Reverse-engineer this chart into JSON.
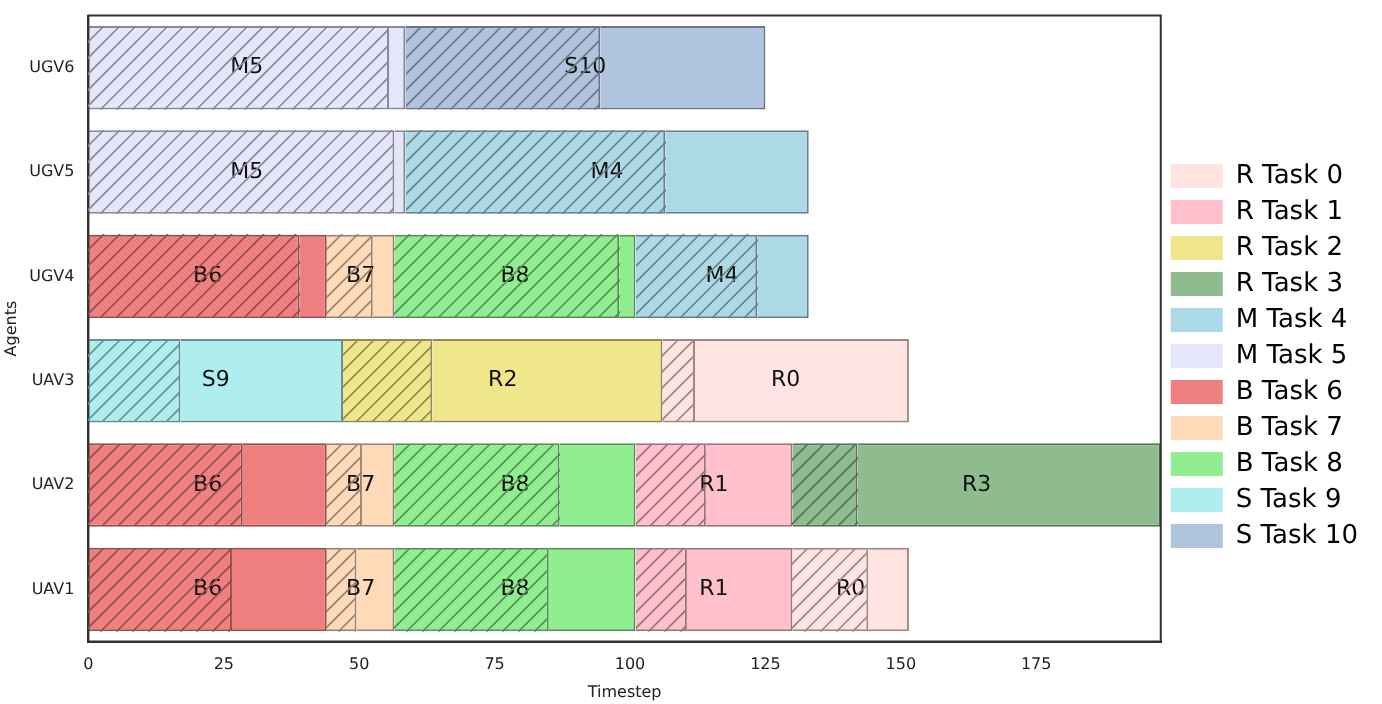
{
  "chart_data": {
    "type": "bar",
    "orientation": "horizontal",
    "xlabel": "Timestep",
    "ylabel": "Agents",
    "categories": [
      "UGV6",
      "UGV5",
      "UGV4",
      "UAV3",
      "UAV2",
      "UAV1"
    ],
    "xlim": [
      0,
      198
    ],
    "xticks": [
      0,
      25,
      50,
      75,
      100,
      125,
      150,
      175
    ],
    "grid": false,
    "legend": "right",
    "series": [
      {
        "color": "#ffe4e1",
        "base": [
          null,
          null,
          null,
          106,
          null,
          130
        ],
        "values": [
          null,
          null,
          null,
          6,
          null,
          14
        ]
      },
      {
        "name": "R Task 0",
        "color": "#ffe4e1",
        "base": [
          null,
          null,
          null,
          112,
          null,
          144
        ],
        "values": [
          null,
          null,
          null,
          39.5,
          null,
          7.5
        ]
      },
      {
        "color": "#ffc0cb",
        "base": [
          null,
          null,
          null,
          null,
          101,
          101
        ],
        "values": [
          null,
          null,
          null,
          null,
          13,
          9.5
        ]
      },
      {
        "name": "R Task 1",
        "color": "#ffc0cb",
        "base": [
          null,
          null,
          null,
          null,
          114,
          110.5
        ],
        "values": [
          null,
          null,
          null,
          null,
          16,
          19.5
        ]
      },
      {
        "color": "#f0e68c",
        "base": [
          null,
          null,
          null,
          47,
          null,
          null
        ],
        "values": [
          null,
          null,
          null,
          16.5,
          null,
          null
        ]
      },
      {
        "name": "R Task 2",
        "color": "#f0e68c",
        "base": [
          null,
          null,
          null,
          63.5,
          null,
          null
        ],
        "values": [
          null,
          null,
          null,
          42.5,
          null,
          null
        ]
      },
      {
        "color": "#8fbc8f",
        "base": [
          null,
          null,
          null,
          null,
          130,
          null
        ],
        "values": [
          null,
          null,
          null,
          null,
          12,
          null
        ]
      },
      {
        "name": "R Task 3",
        "color": "#8fbc8f",
        "base": [
          null,
          null,
          null,
          null,
          142,
          null
        ],
        "values": [
          null,
          null,
          null,
          null,
          56,
          null
        ]
      },
      {
        "color": "#add8e6",
        "base": [
          null,
          58.5,
          101,
          null,
          null,
          null
        ],
        "values": [
          null,
          48,
          22.5,
          null,
          null,
          null
        ]
      },
      {
        "name": "M Task 4",
        "color": "#add8e6",
        "base": [
          null,
          106.5,
          123.5,
          null,
          null,
          null
        ],
        "values": [
          null,
          26.5,
          9.5,
          null,
          null,
          null
        ]
      },
      {
        "color": "#e6e6fa",
        "base": [
          0,
          0,
          null,
          null,
          null,
          null
        ],
        "values": [
          55.5,
          56.5,
          null,
          null,
          null,
          null
        ]
      },
      {
        "name": "M Task 5",
        "color": "#e6e6fa",
        "base": [
          55.5,
          56.5,
          null,
          null,
          null,
          null
        ],
        "values": [
          3,
          2,
          null,
          null,
          null,
          null
        ]
      },
      {
        "color": "#f08080",
        "base": [
          null,
          null,
          0,
          null,
          0,
          0
        ],
        "values": [
          null,
          null,
          39,
          null,
          28.5,
          26.5
        ]
      },
      {
        "name": "B Task 6",
        "color": "#f08080",
        "base": [
          null,
          null,
          39,
          null,
          28.5,
          26.5
        ],
        "values": [
          null,
          null,
          5,
          null,
          15.5,
          17.5
        ]
      },
      {
        "color": "#ffdab9",
        "base": [
          null,
          null,
          44,
          null,
          44,
          44
        ],
        "values": [
          null,
          null,
          8.5,
          null,
          6.5,
          5.5
        ]
      },
      {
        "name": "B Task 7",
        "color": "#ffdab9",
        "base": [
          null,
          null,
          52.5,
          null,
          50.5,
          49.5
        ],
        "values": [
          null,
          null,
          4,
          null,
          6,
          7
        ]
      },
      {
        "color": "#90ee90",
        "base": [
          null,
          null,
          56.5,
          null,
          56.5,
          56.5
        ],
        "values": [
          null,
          null,
          41.5,
          null,
          30.5,
          28.5
        ]
      },
      {
        "name": "B Task 8",
        "color": "#90ee90",
        "base": [
          null,
          null,
          98,
          null,
          87,
          85
        ],
        "values": [
          null,
          null,
          3,
          null,
          14,
          16
        ]
      },
      {
        "color": "#afeeee",
        "base": [
          null,
          null,
          null,
          0,
          null,
          null
        ],
        "values": [
          null,
          null,
          null,
          17,
          null,
          null
        ]
      },
      {
        "name": "S Task 9",
        "color": "#afeeee",
        "base": [
          null,
          null,
          null,
          17,
          null,
          null
        ],
        "values": [
          null,
          null,
          null,
          30,
          null,
          null
        ]
      },
      {
        "color": "#b0c4de",
        "base": [
          58.5,
          null,
          null,
          null,
          null,
          null
        ],
        "values": [
          36,
          null,
          null,
          null,
          null,
          null
        ]
      },
      {
        "name": "S Task 10",
        "color": "#b0c4de",
        "base": [
          94.5,
          null,
          null,
          null,
          null,
          null
        ],
        "values": [
          30.5,
          null,
          null,
          null,
          null,
          null
        ]
      }
    ],
    "annotations": [
      {
        "text": "M5",
        "x": 29.25,
        "y": "UGV6"
      },
      {
        "text": "S10",
        "x": 91.75,
        "y": "UGV6"
      },
      {
        "text": "M5",
        "x": 29.25,
        "y": "UGV5"
      },
      {
        "text": "M4",
        "x": 95.75,
        "y": "UGV5"
      },
      {
        "text": "B6",
        "x": 22,
        "y": "UGV4"
      },
      {
        "text": "B7",
        "x": 50.25,
        "y": "UGV4"
      },
      {
        "text": "B8",
        "x": 78.75,
        "y": "UGV4"
      },
      {
        "text": "M4",
        "x": 117,
        "y": "UGV4"
      },
      {
        "text": "S9",
        "x": 23.5,
        "y": "UAV3"
      },
      {
        "text": "R2",
        "x": 76.5,
        "y": "UAV3"
      },
      {
        "text": "R0",
        "x": 128.75,
        "y": "UAV3"
      },
      {
        "text": "B6",
        "x": 22,
        "y": "UAV2"
      },
      {
        "text": "B7",
        "x": 50.25,
        "y": "UAV2"
      },
      {
        "text": "B8",
        "x": 78.75,
        "y": "UAV2"
      },
      {
        "text": "R1",
        "x": 115.5,
        "y": "UAV2"
      },
      {
        "text": "R3",
        "x": 164,
        "y": "UAV2"
      },
      {
        "text": "B6",
        "x": 22,
        "y": "UAV1"
      },
      {
        "text": "B7",
        "x": 50.25,
        "y": "UAV1"
      },
      {
        "text": "B8",
        "x": 78.75,
        "y": "UAV1"
      },
      {
        "text": "R1",
        "x": 115.5,
        "y": "UAV1"
      },
      {
        "text": "R0",
        "x": 140.75,
        "y": "UAV1"
      }
    ]
  }
}
